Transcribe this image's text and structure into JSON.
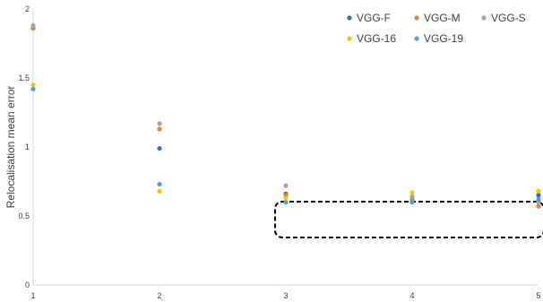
{
  "chart_data": {
    "type": "scatter",
    "title": "",
    "xlabel": "",
    "ylabel": "Relocalisation mean error",
    "xlim": [
      1,
      5
    ],
    "ylim": [
      0,
      2
    ],
    "x_ticks": [
      "1",
      "2",
      "3",
      "4",
      "5"
    ],
    "y_ticks": [
      "0",
      "0.5",
      "1",
      "1.5",
      "2"
    ],
    "grid": false,
    "legend_position": "top-right",
    "annotation": "dashed rounded box around points at x = 3 to 5",
    "series": [
      {
        "name": "VGG-F",
        "color": "#2e75b6",
        "points": [
          [
            1,
            1.86
          ],
          [
            2,
            0.99
          ],
          [
            3,
            0.66
          ],
          [
            4,
            0.61
          ],
          [
            5,
            0.65
          ]
        ]
      },
      {
        "name": "VGG-M",
        "color": "#ed7d31",
        "points": [
          [
            1,
            1.86
          ],
          [
            2,
            1.13
          ],
          [
            3,
            0.65
          ],
          [
            4,
            0.62
          ],
          [
            5,
            0.57
          ]
        ]
      },
      {
        "name": "VGG-S",
        "color": "#a5a5a5",
        "points": [
          [
            1,
            1.88
          ],
          [
            2,
            1.17
          ],
          [
            3,
            0.72
          ],
          [
            4,
            0.64
          ],
          [
            5,
            0.6
          ]
        ]
      },
      {
        "name": "VGG-16",
        "color": "#ffc000",
        "points": [
          [
            1,
            1.45
          ],
          [
            2,
            0.68
          ],
          [
            3,
            0.63
          ],
          [
            4,
            0.67
          ],
          [
            5,
            0.68
          ]
        ]
      },
      {
        "name": "VGG-19",
        "color": "#5b9bd5",
        "points": [
          [
            1,
            1.42
          ],
          [
            2,
            0.73
          ],
          [
            3,
            0.6
          ],
          [
            4,
            0.6
          ],
          [
            5,
            0.62
          ]
        ]
      }
    ]
  }
}
